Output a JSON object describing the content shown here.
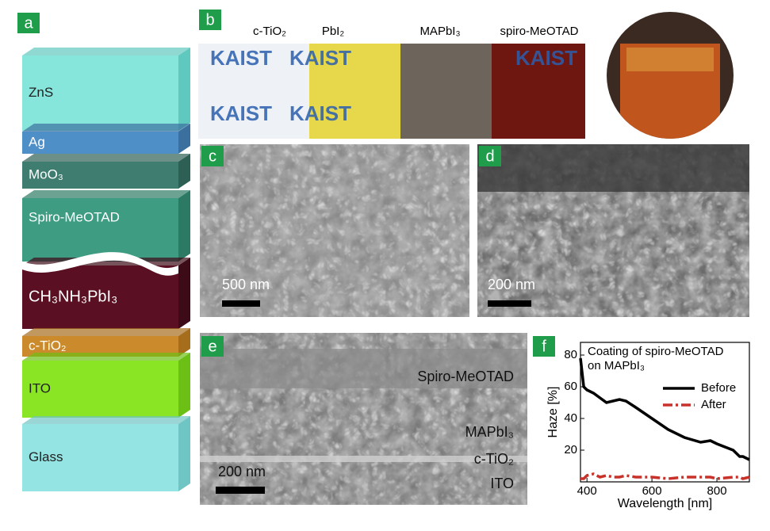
{
  "panels": {
    "a": {
      "label": "a",
      "layers": [
        "ZnS",
        "Ag",
        "MoO₃",
        "Spiro-MeOTAD",
        "CH₃NH₃PbI₃",
        "c-TiO₂",
        "ITO",
        "Glass"
      ]
    },
    "b": {
      "label": "b",
      "samples": [
        "c-TiO₂",
        "PbI₂",
        "MAPbI₃",
        "spiro-MeOTAD"
      ],
      "photo_text": "KAIST"
    },
    "c": {
      "label": "c",
      "scale_bar": "500 nm"
    },
    "d": {
      "label": "d",
      "scale_bar": "200 nm"
    },
    "e": {
      "label": "e",
      "scale_bar": "200 nm",
      "annotations": [
        "Spiro-MeOTAD",
        "MAPbI₃",
        "c-TiO₂",
        "ITO"
      ]
    },
    "f": {
      "label": "f"
    }
  },
  "chart_data": {
    "type": "line",
    "annotation": [
      "Coating of spiro-MeOTAD",
      "on MAPbI₃"
    ],
    "xlabel": "Wavelength [nm]",
    "ylabel": "Haze [%]",
    "x": [
      380,
      390,
      400,
      420,
      440,
      460,
      480,
      500,
      520,
      550,
      600,
      650,
      700,
      750,
      780,
      800,
      850,
      870,
      880,
      900
    ],
    "series": [
      {
        "name": "Before",
        "color": "#000000",
        "dash": false,
        "values": [
          78,
          60,
          58,
          56,
          53,
          50,
          51,
          52,
          51,
          47,
          40,
          33,
          28,
          25,
          26,
          24,
          20,
          16,
          16,
          14
        ]
      },
      {
        "name": "After",
        "color": "#c8322a",
        "dash": true,
        "values": [
          2,
          2,
          4,
          5,
          3,
          4,
          3,
          3,
          4,
          3,
          3,
          2,
          3,
          3,
          3,
          2,
          3,
          3,
          2,
          3
        ]
      }
    ],
    "xlim": [
      380,
      900
    ],
    "ylim": [
      0,
      88
    ],
    "xticks": [
      400,
      600,
      800
    ],
    "yticks": [
      20,
      40,
      60,
      80
    ],
    "legend": "upper right"
  }
}
